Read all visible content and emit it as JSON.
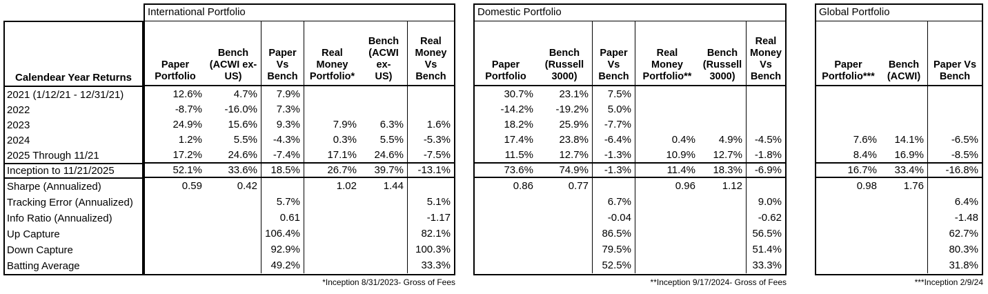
{
  "styles": {
    "border_color": "#000000",
    "background": "#ffffff",
    "text_color": "#000000"
  },
  "label_column": {
    "header": "Calendear Year Returns",
    "rows": [
      "2021 (1/12/21 - 12/31/21)",
      "2022",
      "2023",
      "2024",
      "2025 Through 11/21",
      "Inception to 11/21/2025",
      "Sharpe (Annualized)",
      "Tracking Error (Annualized)",
      "Info Ratio (Annualized)",
      "Up Capture",
      "Down Capture",
      "Batting Average"
    ]
  },
  "tables": [
    {
      "title": "International Portfolio",
      "columns": [
        "Paper\nPortfolio",
        "Bench\n(ACWI ex-\nUS)",
        "Paper\nVs\nBench",
        "Real\nMoney\nPortfolio*",
        "Bench\n(ACWI ex-\nUS)",
        "Real\nMoney\nVs\nBench"
      ],
      "rows": [
        [
          "12.6%",
          "4.7%",
          "7.9%",
          "",
          "",
          ""
        ],
        [
          "-8.7%",
          "-16.0%",
          "7.3%",
          "",
          "",
          ""
        ],
        [
          "24.9%",
          "15.6%",
          "9.3%",
          "7.9%",
          "6.3%",
          "1.6%"
        ],
        [
          "1.2%",
          "5.5%",
          "-4.3%",
          "0.3%",
          "5.5%",
          "-5.3%"
        ],
        [
          "17.2%",
          "24.6%",
          "-7.4%",
          "17.1%",
          "24.6%",
          "-7.5%"
        ],
        [
          "52.1%",
          "33.6%",
          "18.5%",
          "26.7%",
          "39.7%",
          "-13.1%"
        ],
        [
          "0.59",
          "0.42",
          "",
          "1.02",
          "1.44",
          ""
        ],
        [
          "",
          "",
          "5.7%",
          "",
          "",
          "5.1%"
        ],
        [
          "",
          "",
          "0.61",
          "",
          "",
          "-1.17"
        ],
        [
          "",
          "",
          "106.4%",
          "",
          "",
          "82.1%"
        ],
        [
          "",
          "",
          "92.9%",
          "",
          "",
          "100.3%"
        ],
        [
          "",
          "",
          "49.2%",
          "",
          "",
          "33.3%"
        ]
      ],
      "footnote": "*Inception 8/31/2023- Gross of Fees"
    },
    {
      "title": "Domestic Portfolio",
      "columns": [
        "Paper\nPortfolio",
        "Bench\n(Russell\n3000)",
        "Paper\nVs\nBench",
        "Real\nMoney\nPortfolio**",
        "Bench\n(Russell\n3000)",
        "Real\nMoney\nVs\nBench"
      ],
      "rows": [
        [
          "30.7%",
          "23.1%",
          "7.5%",
          "",
          "",
          ""
        ],
        [
          "-14.2%",
          "-19.2%",
          "5.0%",
          "",
          "",
          ""
        ],
        [
          "18.2%",
          "25.9%",
          "-7.7%",
          "",
          "",
          ""
        ],
        [
          "17.4%",
          "23.8%",
          "-6.4%",
          "0.4%",
          "4.9%",
          "-4.5%"
        ],
        [
          "11.5%",
          "12.7%",
          "-1.3%",
          "10.9%",
          "12.7%",
          "-1.8%"
        ],
        [
          "73.6%",
          "74.9%",
          "-1.3%",
          "11.4%",
          "18.3%",
          "-6.9%"
        ],
        [
          "0.86",
          "0.77",
          "",
          "0.96",
          "1.12",
          ""
        ],
        [
          "",
          "",
          "6.7%",
          "",
          "",
          "9.0%"
        ],
        [
          "",
          "",
          "-0.04",
          "",
          "",
          "-0.62"
        ],
        [
          "",
          "",
          "86.5%",
          "",
          "",
          "56.5%"
        ],
        [
          "",
          "",
          "79.5%",
          "",
          "",
          "51.4%"
        ],
        [
          "",
          "",
          "52.5%",
          "",
          "",
          "33.3%"
        ]
      ],
      "footnote": "**Inception 9/17/2024- Gross of Fees"
    },
    {
      "title": "Global Portfolio",
      "columns": [
        "Paper\nPortfolio***",
        "Bench\n(ACWI)",
        "Paper Vs\nBench"
      ],
      "rows": [
        [
          "",
          "",
          ""
        ],
        [
          "",
          "",
          ""
        ],
        [
          "",
          "",
          ""
        ],
        [
          "7.6%",
          "14.1%",
          "-6.5%"
        ],
        [
          "8.4%",
          "16.9%",
          "-8.5%"
        ],
        [
          "16.7%",
          "33.4%",
          "-16.8%"
        ],
        [
          "0.98",
          "1.76",
          ""
        ],
        [
          "",
          "",
          "6.4%"
        ],
        [
          "",
          "",
          "-1.48"
        ],
        [
          "",
          "",
          "62.7%"
        ],
        [
          "",
          "",
          "80.3%"
        ],
        [
          "",
          "",
          "31.8%"
        ]
      ],
      "footnote": "***Inception 2/9/24"
    }
  ]
}
